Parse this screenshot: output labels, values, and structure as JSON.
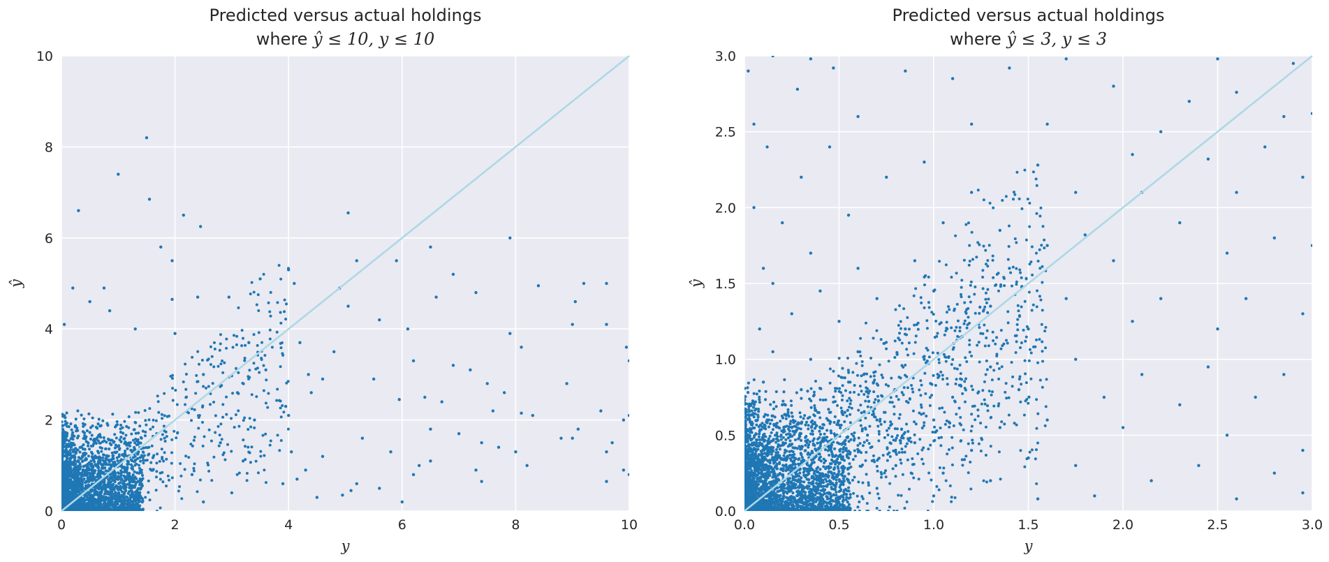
{
  "chart_data": [
    {
      "type": "scatter",
      "title_line1": "Predicted versus actual holdings",
      "title_line2_prefix": "where ",
      "title_line2_math": "ŷ ≤ 10, y ≤ 10",
      "xlabel": "y",
      "ylabel": "ŷ",
      "xlim": [
        0,
        10
      ],
      "ylim": [
        0,
        10
      ],
      "xticks": [
        0,
        2,
        4,
        6,
        8,
        10
      ],
      "yticks": [
        0,
        2,
        4,
        6,
        8,
        10
      ],
      "xtick_labels": [
        "0",
        "2",
        "4",
        "6",
        "8",
        "10"
      ],
      "ytick_labels": [
        "0",
        "2",
        "4",
        "6",
        "8",
        "10"
      ],
      "grid": true,
      "reference_line": {
        "from": [
          0,
          0
        ],
        "to": [
          10,
          10
        ],
        "color": "#add8e6"
      },
      "point_color": "#1f77b4",
      "series": [
        {
          "values": [
            [
              1.5,
              8.2
            ],
            [
              1.0,
              7.4
            ],
            [
              1.55,
              6.85
            ],
            [
              0.3,
              6.6
            ],
            [
              2.15,
              6.5
            ],
            [
              2.45,
              6.25
            ],
            [
              5.05,
              6.55
            ],
            [
              7.9,
              6.0
            ],
            [
              1.75,
              5.8
            ],
            [
              1.95,
              5.5
            ],
            [
              5.2,
              5.5
            ],
            [
              5.9,
              5.5
            ],
            [
              6.5,
              5.8
            ],
            [
              4.0,
              5.3
            ],
            [
              6.9,
              5.2
            ],
            [
              3.5,
              5.1
            ],
            [
              4.1,
              5.0
            ],
            [
              9.2,
              5.0
            ],
            [
              9.6,
              5.0
            ],
            [
              8.4,
              4.95
            ],
            [
              4.9,
              4.9
            ],
            [
              0.75,
              4.9
            ],
            [
              0.2,
              4.9
            ],
            [
              7.3,
              4.8
            ],
            [
              6.6,
              4.7
            ],
            [
              2.4,
              4.7
            ],
            [
              2.95,
              4.7
            ],
            [
              1.95,
              4.65
            ],
            [
              0.5,
              4.6
            ],
            [
              9.05,
              4.6
            ],
            [
              5.05,
              4.5
            ],
            [
              0.85,
              4.4
            ],
            [
              5.6,
              4.2
            ],
            [
              9.0,
              4.1
            ],
            [
              9.6,
              4.1
            ],
            [
              6.1,
              4.0
            ],
            [
              0.05,
              4.1
            ],
            [
              1.3,
              4.0
            ],
            [
              2.0,
              3.9
            ],
            [
              7.9,
              3.9
            ],
            [
              3.3,
              3.7
            ],
            [
              4.2,
              3.7
            ],
            [
              8.1,
              3.6
            ],
            [
              9.95,
              3.6
            ],
            [
              4.8,
              3.5
            ],
            [
              6.2,
              3.3
            ],
            [
              6.9,
              3.2
            ],
            [
              7.2,
              3.1
            ],
            [
              10.0,
              3.3
            ],
            [
              2.5,
              3.0
            ],
            [
              3.6,
              3.1
            ],
            [
              4.35,
              3.0
            ],
            [
              5.5,
              2.9
            ],
            [
              7.5,
              2.8
            ],
            [
              8.9,
              2.8
            ],
            [
              6.4,
              2.5
            ],
            [
              7.8,
              2.6
            ],
            [
              5.95,
              2.45
            ],
            [
              6.7,
              2.4
            ],
            [
              7.6,
              2.2
            ],
            [
              9.5,
              2.2
            ],
            [
              8.1,
              2.15
            ],
            [
              8.3,
              2.1
            ],
            [
              10.0,
              2.1
            ],
            [
              9.9,
              2.0
            ],
            [
              9.1,
              1.8
            ],
            [
              6.5,
              1.8
            ],
            [
              7.0,
              1.7
            ],
            [
              8.8,
              1.6
            ],
            [
              9.0,
              1.6
            ],
            [
              7.4,
              1.5
            ],
            [
              9.7,
              1.5
            ],
            [
              7.7,
              1.4
            ],
            [
              8.0,
              1.3
            ],
            [
              9.6,
              1.3
            ],
            [
              5.8,
              1.3
            ],
            [
              6.5,
              1.1
            ],
            [
              6.3,
              1.0
            ],
            [
              7.3,
              0.9
            ],
            [
              8.2,
              1.0
            ],
            [
              10.0,
              0.8
            ],
            [
              9.9,
              0.9
            ],
            [
              7.4,
              0.65
            ],
            [
              9.6,
              0.65
            ],
            [
              4.6,
              1.2
            ],
            [
              4.3,
              0.9
            ],
            [
              4.15,
              0.7
            ],
            [
              4.05,
              1.3
            ],
            [
              3.9,
              0.6
            ],
            [
              4.5,
              0.3
            ],
            [
              5.6,
              0.5
            ],
            [
              6.0,
              0.2
            ],
            [
              6.2,
              0.8
            ],
            [
              4.95,
              0.35
            ],
            [
              5.1,
              0.45
            ],
            [
              5.2,
              0.6
            ],
            [
              5.3,
              1.6
            ],
            [
              3.95,
              2.3
            ],
            [
              4.4,
              2.6
            ],
            [
              4.6,
              2.9
            ],
            [
              4.0,
              2.1
            ],
            [
              2.5,
              0.2
            ],
            [
              3.0,
              0.4
            ],
            [
              2.3,
              0.8
            ],
            [
              3.2,
              1.1
            ],
            [
              2.8,
              1.5
            ],
            [
              3.4,
              2.0
            ],
            [
              3.1,
              2.6
            ]
          ]
        }
      ]
    },
    {
      "type": "scatter",
      "title_line1": "Predicted versus actual holdings",
      "title_line2_prefix": "where ",
      "title_line2_math": "ŷ ≤ 3, y ≤ 3",
      "xlabel": "y",
      "ylabel": "ŷ",
      "xlim": [
        0,
        3
      ],
      "ylim": [
        0,
        3
      ],
      "xticks": [
        0,
        0.5,
        1.0,
        1.5,
        2.0,
        2.5,
        3.0
      ],
      "yticks": [
        0,
        0.5,
        1.0,
        1.5,
        2.0,
        2.5,
        3.0
      ],
      "xtick_labels": [
        "0.0",
        "0.5",
        "1.0",
        "1.5",
        "2.0",
        "2.5",
        "3.0"
      ],
      "ytick_labels": [
        "0.0",
        "0.5",
        "1.0",
        "1.5",
        "2.0",
        "2.5",
        "3.0"
      ],
      "grid": true,
      "reference_line": {
        "from": [
          0,
          0
        ],
        "to": [
          3,
          3
        ],
        "color": "#add8e6"
      },
      "point_color": "#1f77b4",
      "series": [
        {
          "values": [
            [
              0.02,
              2.9
            ],
            [
              0.15,
              3.0
            ],
            [
              0.35,
              2.98
            ],
            [
              0.28,
              2.78
            ],
            [
              0.47,
              2.92
            ],
            [
              0.85,
              2.9
            ],
            [
              1.1,
              2.85
            ],
            [
              1.4,
              2.92
            ],
            [
              1.7,
              2.98
            ],
            [
              1.95,
              2.8
            ],
            [
              2.5,
              2.98
            ],
            [
              2.9,
              2.95
            ],
            [
              2.35,
              2.7
            ],
            [
              2.6,
              2.76
            ],
            [
              2.85,
              2.6
            ],
            [
              3.0,
              2.62
            ],
            [
              2.75,
              2.4
            ],
            [
              2.2,
              2.5
            ],
            [
              1.6,
              2.55
            ],
            [
              1.2,
              2.55
            ],
            [
              0.6,
              2.6
            ],
            [
              0.05,
              2.55
            ],
            [
              0.12,
              2.4
            ],
            [
              0.45,
              2.4
            ],
            [
              0.95,
              2.3
            ],
            [
              1.55,
              2.28
            ],
            [
              2.05,
              2.35
            ],
            [
              2.45,
              2.32
            ],
            [
              2.95,
              2.2
            ],
            [
              2.6,
              2.1
            ],
            [
              2.1,
              2.1
            ],
            [
              1.75,
              2.1
            ],
            [
              1.2,
              2.1
            ],
            [
              0.75,
              2.2
            ],
            [
              0.3,
              2.2
            ],
            [
              0.05,
              2.0
            ],
            [
              0.2,
              1.9
            ],
            [
              0.55,
              1.95
            ],
            [
              1.05,
              1.9
            ],
            [
              1.35,
              1.85
            ],
            [
              1.8,
              1.82
            ],
            [
              2.3,
              1.9
            ],
            [
              2.8,
              1.8
            ],
            [
              3.0,
              1.75
            ],
            [
              2.55,
              1.7
            ],
            [
              1.95,
              1.65
            ],
            [
              1.6,
              1.75
            ],
            [
              1.4,
              1.6
            ],
            [
              0.9,
              1.65
            ],
            [
              0.6,
              1.6
            ],
            [
              0.35,
              1.7
            ],
            [
              0.1,
              1.6
            ],
            [
              0.15,
              1.5
            ],
            [
              0.4,
              1.45
            ],
            [
              0.7,
              1.4
            ],
            [
              1.0,
              1.45
            ],
            [
              1.3,
              1.35
            ],
            [
              1.7,
              1.4
            ],
            [
              2.2,
              1.4
            ],
            [
              2.65,
              1.4
            ],
            [
              2.95,
              1.3
            ],
            [
              2.5,
              1.2
            ],
            [
              2.05,
              1.25
            ],
            [
              1.5,
              1.2
            ],
            [
              1.15,
              1.15
            ],
            [
              0.85,
              1.2
            ],
            [
              0.5,
              1.25
            ],
            [
              0.25,
              1.3
            ],
            [
              0.08,
              1.2
            ],
            [
              0.15,
              1.05
            ],
            [
              0.35,
              1.0
            ],
            [
              0.6,
              1.05
            ],
            [
              0.95,
              1.0
            ],
            [
              1.3,
              0.95
            ],
            [
              1.75,
              1.0
            ],
            [
              2.1,
              0.9
            ],
            [
              2.45,
              0.95
            ],
            [
              2.85,
              0.9
            ],
            [
              2.7,
              0.75
            ],
            [
              2.3,
              0.7
            ],
            [
              1.9,
              0.75
            ],
            [
              1.45,
              0.8
            ],
            [
              1.1,
              0.75
            ],
            [
              0.8,
              0.8
            ],
            [
              0.55,
              0.85
            ],
            [
              0.3,
              0.8
            ],
            [
              0.1,
              0.85
            ],
            [
              0.2,
              0.7
            ],
            [
              0.45,
              0.65
            ],
            [
              0.7,
              0.6
            ],
            [
              1.0,
              0.6
            ],
            [
              1.35,
              0.55
            ],
            [
              1.6,
              0.6
            ],
            [
              2.0,
              0.55
            ],
            [
              2.55,
              0.5
            ],
            [
              2.95,
              0.4
            ],
            [
              2.8,
              0.25
            ],
            [
              2.4,
              0.3
            ],
            [
              2.15,
              0.2
            ],
            [
              1.75,
              0.3
            ],
            [
              1.5,
              0.35
            ],
            [
              1.2,
              0.4
            ],
            [
              0.9,
              0.45
            ],
            [
              0.65,
              0.5
            ],
            [
              0.4,
              0.45
            ],
            [
              0.25,
              0.55
            ],
            [
              0.12,
              0.6
            ],
            [
              0.05,
              0.45
            ],
            [
              0.15,
              0.35
            ],
            [
              0.35,
              0.3
            ],
            [
              0.55,
              0.35
            ],
            [
              0.8,
              0.3
            ],
            [
              1.05,
              0.25
            ],
            [
              1.3,
              0.2
            ],
            [
              1.85,
              0.1
            ],
            [
              2.6,
              0.08
            ],
            [
              2.95,
              0.12
            ],
            [
              1.55,
              0.08
            ],
            [
              1.0,
              0.1
            ],
            [
              0.7,
              0.15
            ],
            [
              0.45,
              0.2
            ],
            [
              0.25,
              0.18
            ],
            [
              0.08,
              0.25
            ],
            [
              0.3,
              0.1
            ],
            [
              0.5,
              0.05
            ],
            [
              0.15,
              0.12
            ]
          ]
        }
      ]
    }
  ]
}
